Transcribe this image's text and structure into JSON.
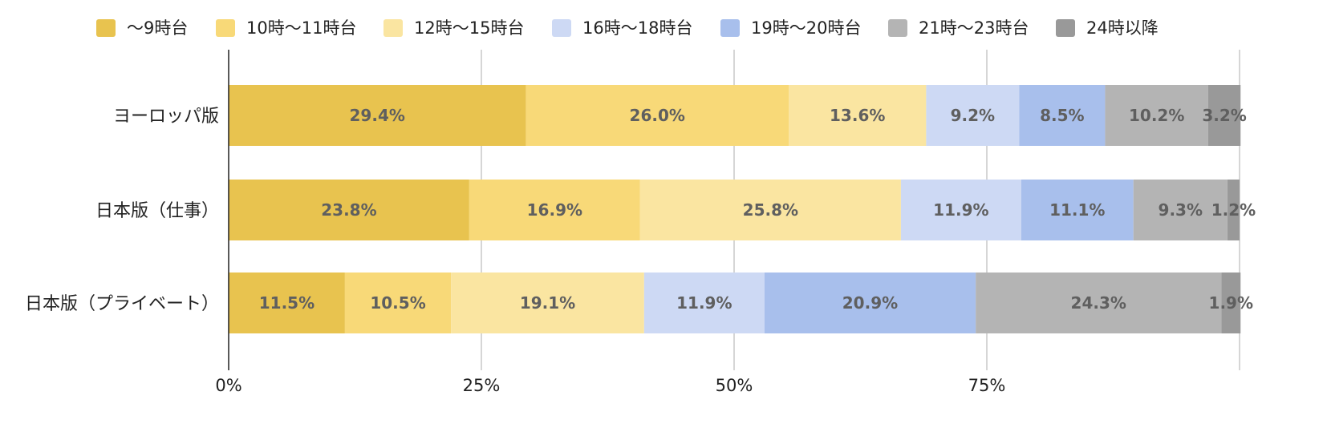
{
  "chart_data": {
    "type": "bar",
    "orientation": "horizontal",
    "stacked": true,
    "categories": [
      "ヨーロッパ版",
      "日本版（仕事）",
      "日本版（プライベート）"
    ],
    "series": [
      {
        "name": "〜9時台",
        "color": "#e8c34f",
        "values": [
          29.4,
          23.8,
          11.5
        ],
        "labels": [
          "29.4%",
          "23.8%",
          "11.5%"
        ]
      },
      {
        "name": "10時〜11時台",
        "color": "#f8d978",
        "values": [
          26.0,
          16.9,
          10.5
        ],
        "labels": [
          "26.0%",
          "16.9%",
          "10.5%"
        ]
      },
      {
        "name": "12時〜15時台",
        "color": "#fae5a1",
        "values": [
          13.6,
          25.8,
          19.1
        ],
        "labels": [
          "13.6%",
          "25.8%",
          "19.1%"
        ]
      },
      {
        "name": "16時〜18時台",
        "color": "#cdd9f4",
        "values": [
          9.2,
          11.9,
          11.9
        ],
        "labels": [
          "9.2%",
          "11.9%",
          "11.9%"
        ]
      },
      {
        "name": "19時〜20時台",
        "color": "#a8bfec",
        "values": [
          8.5,
          11.1,
          20.9
        ],
        "labels": [
          "8.5%",
          "11.1%",
          "20.9%"
        ]
      },
      {
        "name": "21時〜23時台",
        "color": "#b4b4b4",
        "values": [
          10.2,
          9.3,
          24.3
        ],
        "labels": [
          "10.2%",
          "9.3%",
          "24.3%"
        ]
      },
      {
        "name": "24時以降",
        "color": "#999999",
        "values": [
          3.2,
          1.2,
          1.9
        ],
        "labels": [
          "3.2%",
          "1.2%",
          "1.9%"
        ]
      }
    ],
    "x_ticks": [
      "0%",
      "25%",
      "50%",
      "75%"
    ],
    "xlim": [
      0,
      100
    ],
    "grid": true,
    "legend_position": "top"
  }
}
